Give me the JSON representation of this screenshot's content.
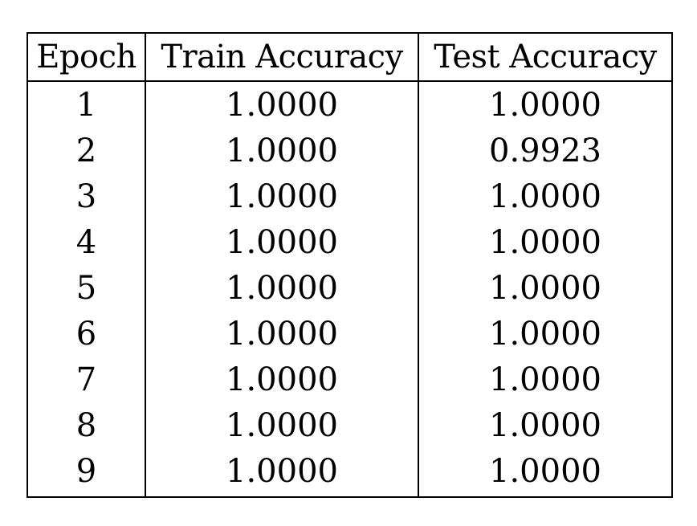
{
  "table": {
    "headers": [
      "Epoch",
      "Train Accuracy",
      "Test Accuracy"
    ],
    "rows": [
      [
        "1",
        "1.0000",
        "1.0000"
      ],
      [
        "2",
        "1.0000",
        "0.9923"
      ],
      [
        "3",
        "1.0000",
        "1.0000"
      ],
      [
        "4",
        "1.0000",
        "1.0000"
      ],
      [
        "5",
        "1.0000",
        "1.0000"
      ],
      [
        "6",
        "1.0000",
        "1.0000"
      ],
      [
        "7",
        "1.0000",
        "1.0000"
      ],
      [
        "8",
        "1.0000",
        "1.0000"
      ],
      [
        "9",
        "1.0000",
        "1.0000"
      ]
    ]
  }
}
